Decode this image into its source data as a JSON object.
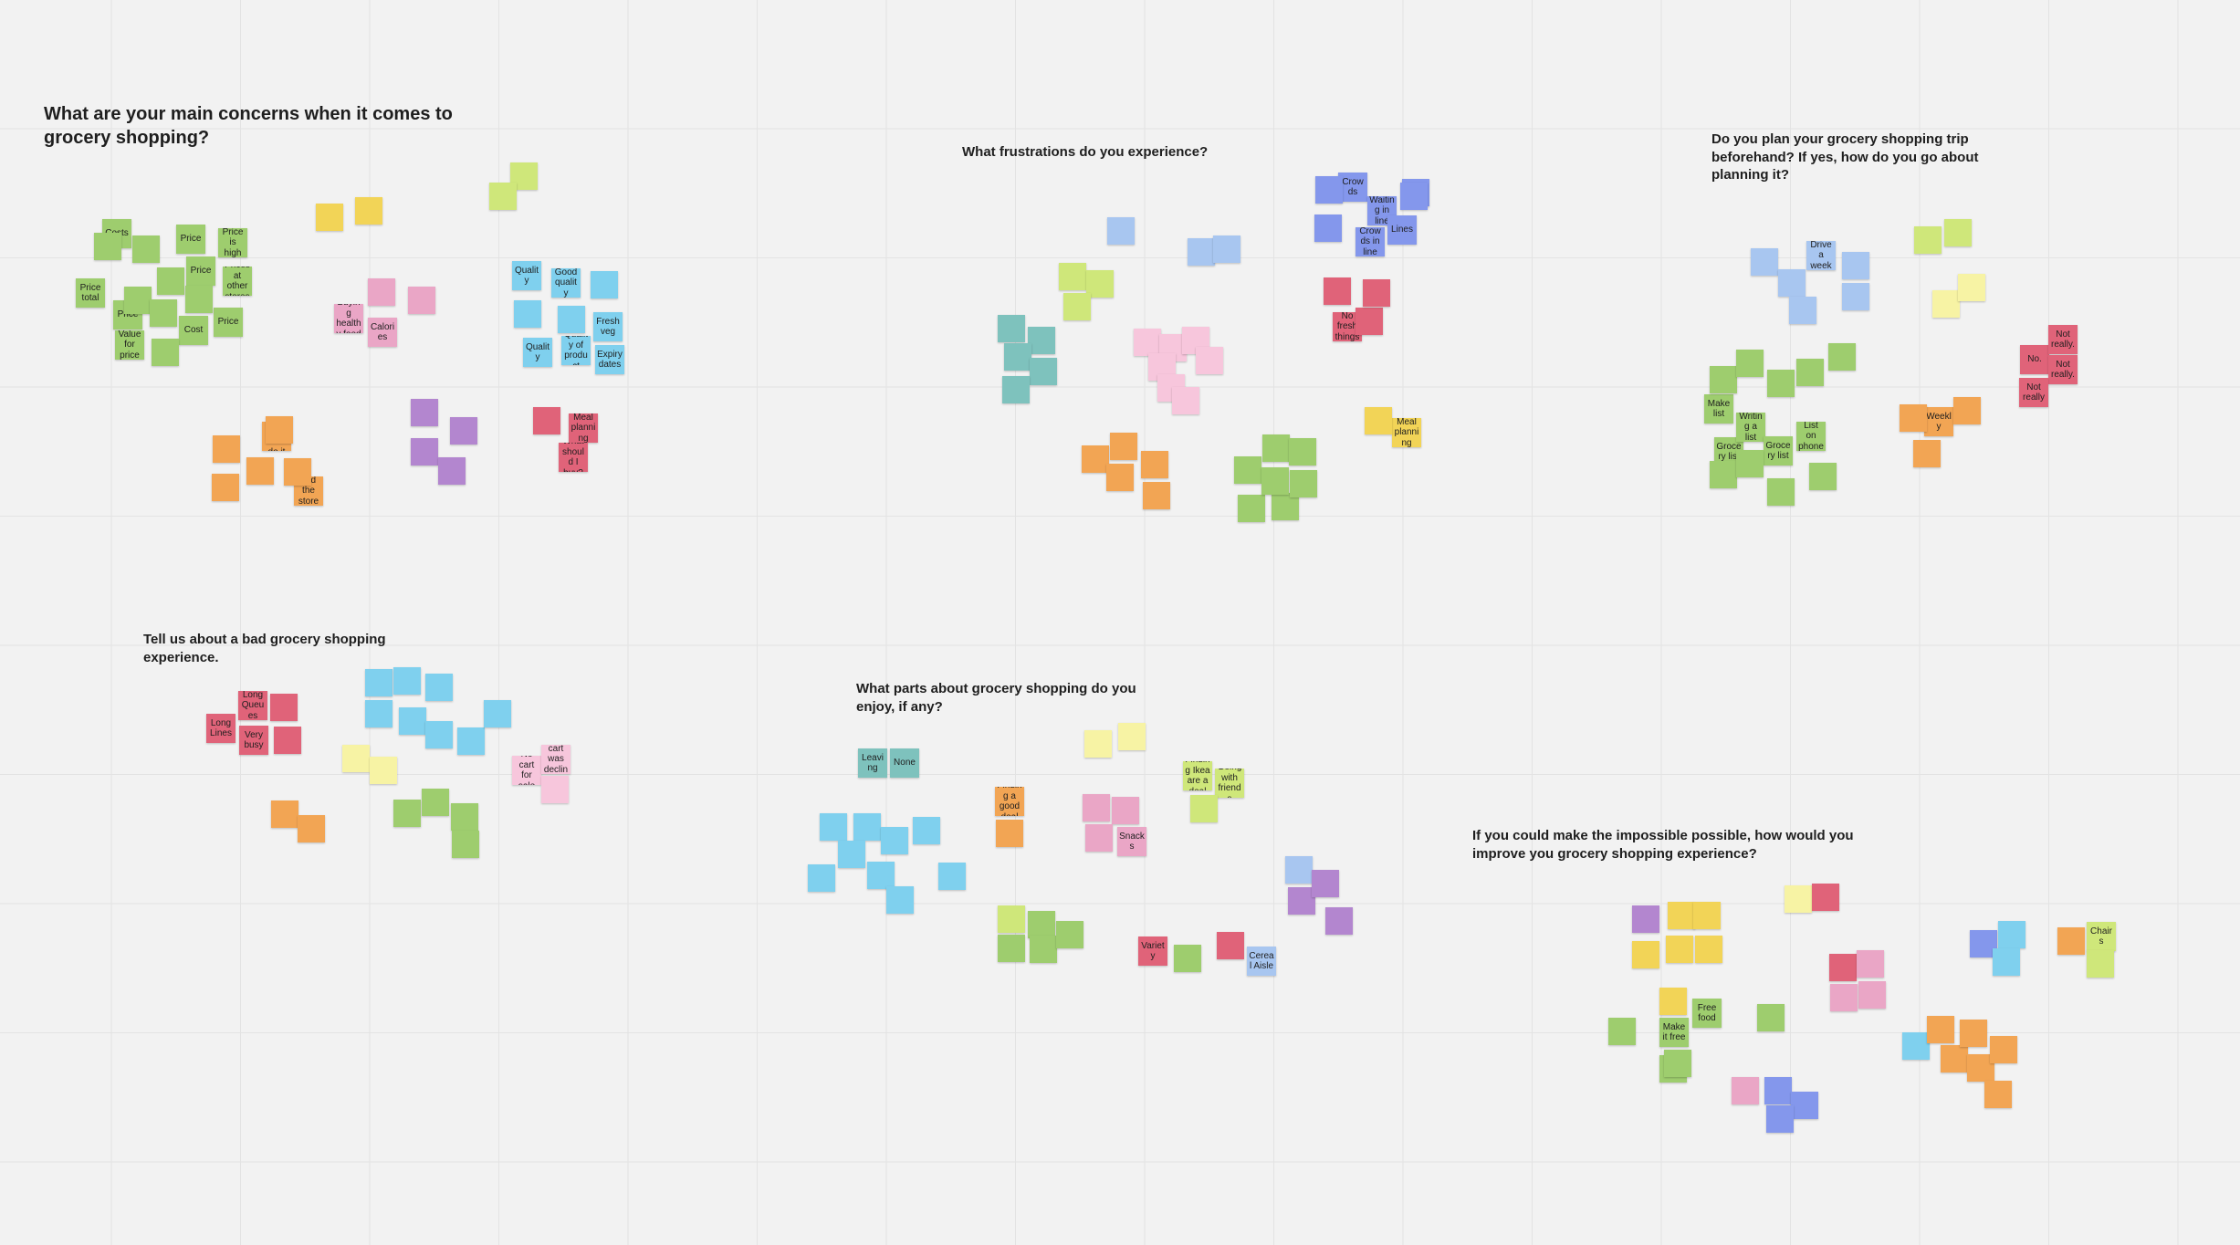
{
  "colors": {
    "green": "#9ecd6e",
    "yellow": "#f2d457",
    "pink": "#eaa6c6",
    "lightpink": "#f7c6dc",
    "cyan": "#7fd0ee",
    "orange": "#f2a554",
    "purple": "#b386cf",
    "red": "#e06379",
    "teal": "#7ec2bd",
    "lime": "#cfe77a",
    "lightyellow": "#f7f3a4",
    "blue": "#8497ec",
    "lightblue": "#a8c6f0"
  },
  "questions": [
    {
      "text": "What are your main concerns when it comes to grocery shopping?"
    },
    {
      "text": "What frustrations do you experience?"
    },
    {
      "text": "Do you plan your grocery shopping trip beforehand? If yes, how do you go about planning it?"
    },
    {
      "text": "Tell us about a bad grocery shopping experience."
    },
    {
      "text": "What parts about grocery shopping do you enjoy, if any?"
    },
    {
      "text": "If you could make the impossible possible, how would you improve you grocery shopping experience?"
    }
  ],
  "notes": [
    {
      "text": "Costs",
      "color": "green"
    },
    {
      "text": "Price",
      "color": "green"
    },
    {
      "text": "Price is high",
      "color": "green"
    },
    {
      "text": "Price total",
      "color": "green"
    },
    {
      "text": "Price",
      "color": "green"
    },
    {
      "text": "Prices at other stores",
      "color": "green"
    },
    {
      "text": "Price",
      "color": "green"
    },
    {
      "text": "Cost",
      "color": "green"
    },
    {
      "text": "Price",
      "color": "green"
    },
    {
      "text": "Value for price",
      "color": "green"
    },
    {
      "text": "",
      "color": "green"
    },
    {
      "text": "",
      "color": "green"
    },
    {
      "text": "",
      "color": "green"
    },
    {
      "text": "",
      "color": "green"
    },
    {
      "text": "",
      "color": "green"
    },
    {
      "text": "",
      "color": "green"
    },
    {
      "text": "",
      "color": "green"
    },
    {
      "text": "",
      "color": "yellow"
    },
    {
      "text": "",
      "color": "yellow"
    },
    {
      "text": "",
      "color": "lime"
    },
    {
      "text": "",
      "color": "lime"
    },
    {
      "text": "Buying healthy food",
      "color": "pink"
    },
    {
      "text": "Calories",
      "color": "pink"
    },
    {
      "text": "",
      "color": "pink"
    },
    {
      "text": "",
      "color": "pink"
    },
    {
      "text": "Quality",
      "color": "cyan"
    },
    {
      "text": "Good quality",
      "color": "cyan"
    },
    {
      "text": "Fresh veg",
      "color": "cyan"
    },
    {
      "text": "Quality",
      "color": "cyan"
    },
    {
      "text": "Quality of product",
      "color": "cyan"
    },
    {
      "text": "Expiry dates",
      "color": "cyan"
    },
    {
      "text": "",
      "color": "cyan"
    },
    {
      "text": "",
      "color": "cyan"
    },
    {
      "text": "",
      "color": "cyan"
    },
    {
      "text": "How fast I can do it",
      "color": "orange"
    },
    {
      "text": "I can find the store is",
      "color": "orange"
    },
    {
      "text": "",
      "color": "orange"
    },
    {
      "text": "",
      "color": "orange"
    },
    {
      "text": "",
      "color": "orange"
    },
    {
      "text": "",
      "color": "orange"
    },
    {
      "text": "",
      "color": "orange"
    },
    {
      "text": "",
      "color": "purple"
    },
    {
      "text": "",
      "color": "purple"
    },
    {
      "text": "",
      "color": "purple"
    },
    {
      "text": "",
      "color": "purple"
    },
    {
      "text": "Meal planning",
      "color": "red"
    },
    {
      "text": "What should I buy?",
      "color": "red"
    },
    {
      "text": "",
      "color": "red"
    },
    {
      "text": "Crowds",
      "color": "blue"
    },
    {
      "text": "Waiting in line",
      "color": "blue"
    },
    {
      "text": "Lines",
      "color": "blue"
    },
    {
      "text": "Crowds in line",
      "color": "blue"
    },
    {
      "text": "",
      "color": "blue"
    },
    {
      "text": "",
      "color": "blue"
    },
    {
      "text": "",
      "color": "blue"
    },
    {
      "text": "",
      "color": "blue"
    },
    {
      "text": "No fresh things",
      "color": "red"
    },
    {
      "text": "",
      "color": "red"
    },
    {
      "text": "",
      "color": "red"
    },
    {
      "text": "",
      "color": "red"
    },
    {
      "text": "Meal planning",
      "color": "yellow"
    },
    {
      "text": "",
      "color": "yellow"
    },
    {
      "text": "",
      "color": "lightblue"
    },
    {
      "text": "",
      "color": "lightblue"
    },
    {
      "text": "",
      "color": "lightblue"
    },
    {
      "text": "",
      "color": "lime"
    },
    {
      "text": "",
      "color": "lime"
    },
    {
      "text": "",
      "color": "lime"
    },
    {
      "text": "",
      "color": "teal"
    },
    {
      "text": "",
      "color": "teal"
    },
    {
      "text": "",
      "color": "teal"
    },
    {
      "text": "",
      "color": "teal"
    },
    {
      "text": "",
      "color": "teal"
    },
    {
      "text": "",
      "color": "lightpink"
    },
    {
      "text": "",
      "color": "lightpink"
    },
    {
      "text": "",
      "color": "lightpink"
    },
    {
      "text": "",
      "color": "lightpink"
    },
    {
      "text": "",
      "color": "lightpink"
    },
    {
      "text": "",
      "color": "lightpink"
    },
    {
      "text": "",
      "color": "lightpink"
    },
    {
      "text": "",
      "color": "orange"
    },
    {
      "text": "",
      "color": "orange"
    },
    {
      "text": "",
      "color": "orange"
    },
    {
      "text": "",
      "color": "orange"
    },
    {
      "text": "",
      "color": "orange"
    },
    {
      "text": "",
      "color": "green"
    },
    {
      "text": "",
      "color": "green"
    },
    {
      "text": "",
      "color": "green"
    },
    {
      "text": "",
      "color": "green"
    },
    {
      "text": "",
      "color": "green"
    },
    {
      "text": "",
      "color": "green"
    },
    {
      "text": "",
      "color": "green"
    },
    {
      "text": "Drive a week",
      "color": "lightblue"
    },
    {
      "text": "",
      "color": "lightblue"
    },
    {
      "text": "",
      "color": "lightblue"
    },
    {
      "text": "",
      "color": "lightblue"
    },
    {
      "text": "",
      "color": "lightblue"
    },
    {
      "text": "",
      "color": "lightblue"
    },
    {
      "text": "",
      "color": "lime"
    },
    {
      "text": "",
      "color": "lime"
    },
    {
      "text": "",
      "color": "lightyellow"
    },
    {
      "text": "",
      "color": "lightyellow"
    },
    {
      "text": "Make list",
      "color": "green"
    },
    {
      "text": "Grocery list",
      "color": "green"
    },
    {
      "text": "Writing a list",
      "color": "green"
    },
    {
      "text": "Grocery list",
      "color": "green"
    },
    {
      "text": "List on phone",
      "color": "green"
    },
    {
      "text": "",
      "color": "green"
    },
    {
      "text": "",
      "color": "green"
    },
    {
      "text": "",
      "color": "green"
    },
    {
      "text": "",
      "color": "green"
    },
    {
      "text": "",
      "color": "green"
    },
    {
      "text": "",
      "color": "green"
    },
    {
      "text": "",
      "color": "green"
    },
    {
      "text": "",
      "color": "green"
    },
    {
      "text": "",
      "color": "green"
    },
    {
      "text": "Weekly",
      "color": "orange"
    },
    {
      "text": "",
      "color": "orange"
    },
    {
      "text": "",
      "color": "orange"
    },
    {
      "text": "",
      "color": "orange"
    },
    {
      "text": "No.",
      "color": "red"
    },
    {
      "text": "Not really.",
      "color": "red"
    },
    {
      "text": "Not really.",
      "color": "red"
    },
    {
      "text": "Not really",
      "color": "red"
    },
    {
      "text": "Long Lines",
      "color": "red"
    },
    {
      "text": "Long Queues",
      "color": "red"
    },
    {
      "text": "Very busy",
      "color": "red"
    },
    {
      "text": "",
      "color": "red"
    },
    {
      "text": "",
      "color": "red"
    },
    {
      "text": "",
      "color": "cyan"
    },
    {
      "text": "",
      "color": "cyan"
    },
    {
      "text": "",
      "color": "cyan"
    },
    {
      "text": "",
      "color": "cyan"
    },
    {
      "text": "",
      "color": "cyan"
    },
    {
      "text": "",
      "color": "cyan"
    },
    {
      "text": "",
      "color": "cyan"
    },
    {
      "text": "",
      "color": "cyan"
    },
    {
      "text": "",
      "color": "lightyellow"
    },
    {
      "text": "",
      "color": "lightyellow"
    },
    {
      "text": "No cart for sale",
      "color": "lightpink"
    },
    {
      "text": "My cart was declined",
      "color": "lightpink"
    },
    {
      "text": "",
      "color": "lightpink"
    },
    {
      "text": "",
      "color": "orange"
    },
    {
      "text": "",
      "color": "orange"
    },
    {
      "text": "",
      "color": "green"
    },
    {
      "text": "",
      "color": "green"
    },
    {
      "text": "",
      "color": "green"
    },
    {
      "text": "",
      "color": "green"
    },
    {
      "text": "Leaving",
      "color": "teal"
    },
    {
      "text": "None",
      "color": "teal"
    },
    {
      "text": "",
      "color": "cyan"
    },
    {
      "text": "",
      "color": "cyan"
    },
    {
      "text": "",
      "color": "cyan"
    },
    {
      "text": "",
      "color": "cyan"
    },
    {
      "text": "",
      "color": "cyan"
    },
    {
      "text": "",
      "color": "cyan"
    },
    {
      "text": "",
      "color": "cyan"
    },
    {
      "text": "",
      "color": "cyan"
    },
    {
      "text": "",
      "color": "cyan"
    },
    {
      "text": "Finding a good deal",
      "color": "orange"
    },
    {
      "text": "",
      "color": "orange"
    },
    {
      "text": "Snacks",
      "color": "pink"
    },
    {
      "text": "",
      "color": "pink"
    },
    {
      "text": "",
      "color": "pink"
    },
    {
      "text": "",
      "color": "pink"
    },
    {
      "text": "",
      "color": "lightyellow"
    },
    {
      "text": "",
      "color": "lightyellow"
    },
    {
      "text": "Finding Ikea are a deal",
      "color": "lime"
    },
    {
      "text": "Going with friends",
      "color": "lime"
    },
    {
      "text": "",
      "color": "lime"
    },
    {
      "text": "",
      "color": "lime"
    },
    {
      "text": "",
      "color": "green"
    },
    {
      "text": "",
      "color": "green"
    },
    {
      "text": "",
      "color": "green"
    },
    {
      "text": "",
      "color": "green"
    },
    {
      "text": "",
      "color": "green"
    },
    {
      "text": "Variety",
      "color": "red"
    },
    {
      "text": "",
      "color": "red"
    },
    {
      "text": "Cereal Aisle",
      "color": "lightblue"
    },
    {
      "text": "",
      "color": "lightblue"
    },
    {
      "text": "",
      "color": "purple"
    },
    {
      "text": "",
      "color": "purple"
    },
    {
      "text": "",
      "color": "purple"
    },
    {
      "text": "",
      "color": "purple"
    },
    {
      "text": "",
      "color": "yellow"
    },
    {
      "text": "",
      "color": "yellow"
    },
    {
      "text": "",
      "color": "yellow"
    },
    {
      "text": "",
      "color": "yellow"
    },
    {
      "text": "",
      "color": "yellow"
    },
    {
      "text": "",
      "color": "yellow"
    },
    {
      "text": "Free food",
      "color": "green"
    },
    {
      "text": "Make it free",
      "color": "green"
    },
    {
      "text": "",
      "color": "green"
    },
    {
      "text": "",
      "color": "green"
    },
    {
      "text": "",
      "color": "green"
    },
    {
      "text": "",
      "color": "green"
    },
    {
      "text": "",
      "color": "lightyellow"
    },
    {
      "text": "",
      "color": "red"
    },
    {
      "text": "",
      "color": "red"
    },
    {
      "text": "",
      "color": "pink"
    },
    {
      "text": "",
      "color": "pink"
    },
    {
      "text": "",
      "color": "pink"
    },
    {
      "text": "",
      "color": "pink"
    },
    {
      "text": "",
      "color": "blue"
    },
    {
      "text": "",
      "color": "blue"
    },
    {
      "text": "",
      "color": "blue"
    },
    {
      "text": "",
      "color": "blue"
    },
    {
      "text": "",
      "color": "cyan"
    },
    {
      "text": "",
      "color": "cyan"
    },
    {
      "text": "",
      "color": "cyan"
    },
    {
      "text": "",
      "color": "orange"
    },
    {
      "text": "",
      "color": "orange"
    },
    {
      "text": "",
      "color": "orange"
    },
    {
      "text": "",
      "color": "orange"
    },
    {
      "text": "",
      "color": "orange"
    },
    {
      "text": "",
      "color": "orange"
    },
    {
      "text": "",
      "color": "orange"
    },
    {
      "text": "Chairs",
      "color": "lime"
    },
    {
      "text": "",
      "color": "lime"
    },
    {
      "text": "",
      "color": "lime"
    }
  ]
}
